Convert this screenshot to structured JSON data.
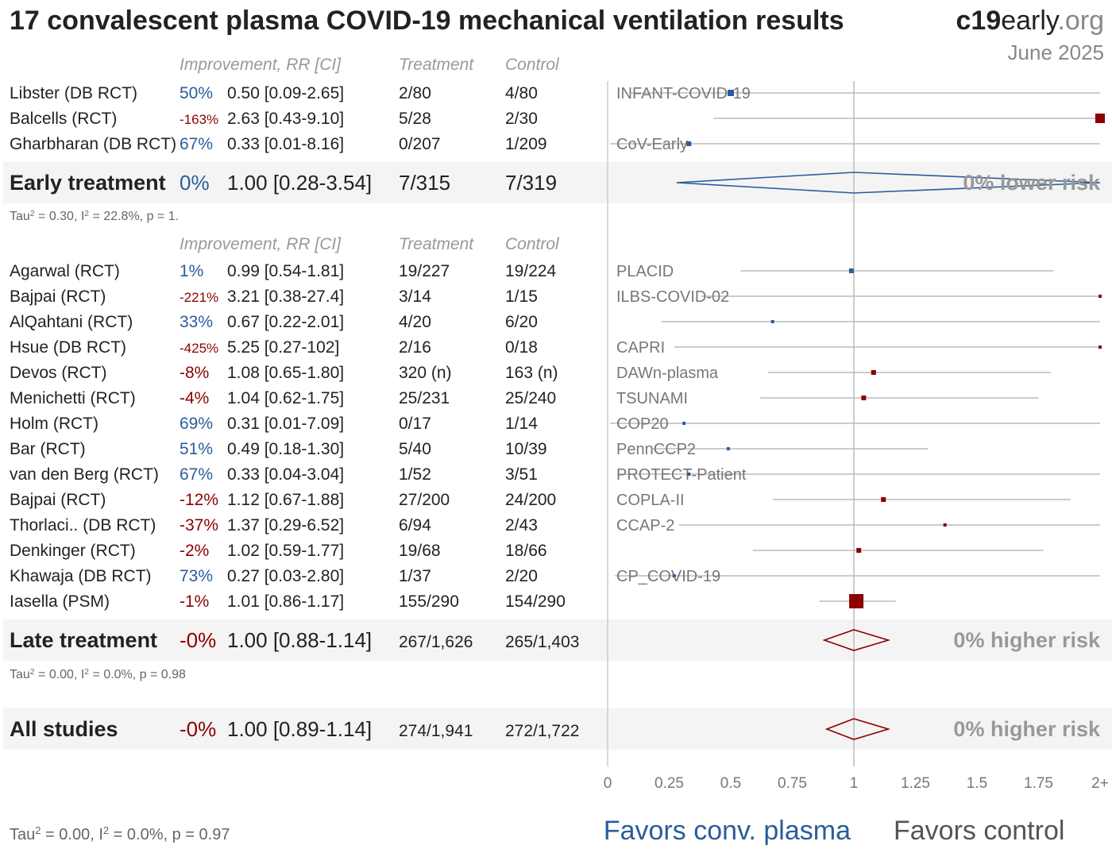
{
  "header": {
    "title": "17 convalescent plasma COVID-19 mechanical ventilation results",
    "brand_bold": "c19",
    "brand_rest": "early",
    "brand_tld": ".org",
    "date": "June 2025"
  },
  "columns": {
    "improvement": "Improvement, RR [CI]",
    "treatment": "Treatment",
    "control": "Control"
  },
  "colors": {
    "favor": "#2a5d9a",
    "harm": "#8b0000",
    "line": "#bbbbbb",
    "band": "#f4f4f4"
  },
  "chart_data": {
    "type": "forest",
    "x_ticks": [
      "0",
      "0.25",
      "0.5",
      "0.75",
      "1",
      "1.25",
      "1.5",
      "1.75",
      "2+"
    ],
    "xlim": [
      0,
      2
    ],
    "favors_left": "Favors conv. plasma",
    "favors_right": "Favors control",
    "groups": [
      {
        "studies": [
          {
            "name": "Libster (DB RCT)",
            "improvement": "50%",
            "rr": 0.5,
            "rr_text": "0.50 [0.09-2.65]",
            "lo": 0.09,
            "hi": 2.65,
            "treatment": "2/80",
            "control": "4/80",
            "trial": "INFANT-COVID-19",
            "weight": 3
          },
          {
            "name": "Balcells (RCT)",
            "improvement": "-163%",
            "rr": 2.63,
            "rr_text": "2.63 [0.43-9.10]",
            "lo": 0.43,
            "hi": 9.1,
            "treatment": "5/28",
            "control": "2/30",
            "trial": "",
            "weight": 4
          },
          {
            "name": "Gharbharan (DB RCT)",
            "improvement": "67%",
            "rr": 0.33,
            "rr_text": "0.33 [0.01-8.16]",
            "lo": 0.01,
            "hi": 8.16,
            "treatment": "0/207",
            "control": "1/209",
            "trial": "CoV-Early",
            "weight": 2
          }
        ],
        "summary": {
          "label": "Early treatment",
          "improvement": "0%",
          "rr": 1.0,
          "rr_text": "1.00 [0.28-3.54]",
          "lo": 0.28,
          "hi": 3.54,
          "treatment": "7/315",
          "control": "7/319",
          "risk": "0% lower risk"
        },
        "stats": {
          "tau2": "0.30",
          "i2": "22.8%",
          "p": "1."
        }
      },
      {
        "studies": [
          {
            "name": "Agarwal (RCT)",
            "improvement": "1%",
            "rr": 0.99,
            "rr_text": "0.99 [0.54-1.81]",
            "lo": 0.54,
            "hi": 1.81,
            "treatment": "19/227",
            "control": "19/224",
            "trial": "PLACID",
            "weight": 2
          },
          {
            "name": "Bajpai (RCT)",
            "improvement": "-221%",
            "rr": 3.21,
            "rr_text": "3.21 [0.38-27.4]",
            "lo": 0.38,
            "hi": 27.4,
            "treatment": "3/14",
            "control": "1/15",
            "trial": "ILBS-COVID-02",
            "weight": 1
          },
          {
            "name": "AlQahtani (RCT)",
            "improvement": "33%",
            "rr": 0.67,
            "rr_text": "0.67 [0.22-2.01]",
            "lo": 0.22,
            "hi": 2.01,
            "treatment": "4/20",
            "control": "6/20",
            "trial": "",
            "weight": 1
          },
          {
            "name": "Hsue (DB RCT)",
            "improvement": "-425%",
            "rr": 5.25,
            "rr_text": "5.25 [0.27-102]",
            "lo": 0.27,
            "hi": 102,
            "treatment": "2/16",
            "control": "0/18",
            "trial": "CAPRI",
            "weight": 1
          },
          {
            "name": "Devos (RCT)",
            "improvement": "-8%",
            "rr": 1.08,
            "rr_text": "1.08 [0.65-1.80]",
            "lo": 0.65,
            "hi": 1.8,
            "treatment": "320 (n)",
            "control": "163 (n)",
            "trial": "DAWn-plasma",
            "weight": 2
          },
          {
            "name": "Menichetti (RCT)",
            "improvement": "-4%",
            "rr": 1.04,
            "rr_text": "1.04 [0.62-1.75]",
            "lo": 0.62,
            "hi": 1.75,
            "treatment": "25/231",
            "control": "25/240",
            "trial": "TSUNAMI",
            "weight": 2
          },
          {
            "name": "Holm (RCT)",
            "improvement": "69%",
            "rr": 0.31,
            "rr_text": "0.31 [0.01-7.09]",
            "lo": 0.01,
            "hi": 7.09,
            "treatment": "0/17",
            "control": "1/14",
            "trial": "COP20",
            "weight": 1
          },
          {
            "name": "Bar (RCT)",
            "improvement": "51%",
            "rr": 0.49,
            "rr_text": "0.49 [0.18-1.30]",
            "lo": 0.18,
            "hi": 1.3,
            "treatment": "5/40",
            "control": "10/39",
            "trial": "PennCCP2",
            "weight": 1
          },
          {
            "name": "van den Berg (RCT)",
            "improvement": "67%",
            "rr": 0.33,
            "rr_text": "0.33 [0.04-3.04]",
            "lo": 0.04,
            "hi": 3.04,
            "treatment": "1/52",
            "control": "3/51",
            "trial": "PROTECT-Patient",
            "weight": 1
          },
          {
            "name": "Bajpai (RCT)",
            "improvement": "-12%",
            "rr": 1.12,
            "rr_text": "1.12 [0.67-1.88]",
            "lo": 0.67,
            "hi": 1.88,
            "treatment": "27/200",
            "control": "24/200",
            "trial": "COPLA-II",
            "weight": 2
          },
          {
            "name": "Thorlaci.. (DB RCT)",
            "improvement": "-37%",
            "rr": 1.37,
            "rr_text": "1.37 [0.29-6.52]",
            "lo": 0.29,
            "hi": 6.52,
            "treatment": "6/94",
            "control": "2/43",
            "trial": "CCAP-2",
            "weight": 1
          },
          {
            "name": "Denkinger (RCT)",
            "improvement": "-2%",
            "rr": 1.02,
            "rr_text": "1.02 [0.59-1.77]",
            "lo": 0.59,
            "hi": 1.77,
            "treatment": "19/68",
            "control": "18/66",
            "trial": "",
            "weight": 2
          },
          {
            "name": "Khawaja (DB RCT)",
            "improvement": "73%",
            "rr": 0.27,
            "rr_text": "0.27 [0.03-2.80]",
            "lo": 0.03,
            "hi": 2.8,
            "treatment": "1/37",
            "control": "2/20",
            "trial": "CP_COVID-19",
            "weight": 1
          },
          {
            "name": "Iasella (PSM)",
            "improvement": "-1%",
            "rr": 1.01,
            "rr_text": "1.01 [0.86-1.17]",
            "lo": 0.86,
            "hi": 1.17,
            "treatment": "155/290",
            "control": "154/290",
            "trial": "",
            "weight": 5
          }
        ],
        "summary": {
          "label": "Late treatment",
          "improvement": "-0%",
          "rr": 1.0,
          "rr_text": "1.00 [0.88-1.14]",
          "lo": 0.88,
          "hi": 1.14,
          "treatment": "267/1,626",
          "control": "265/1,403",
          "risk": "0% higher risk"
        },
        "stats": {
          "tau2": "0.00",
          "i2": "0.0%",
          "p": "0.98"
        }
      }
    ],
    "overall": {
      "label": "All studies",
      "improvement": "-0%",
      "rr": 1.0,
      "rr_text": "1.00 [0.89-1.14]",
      "lo": 0.89,
      "hi": 1.14,
      "treatment": "274/1,941",
      "control": "272/1,722",
      "risk": "0% higher risk"
    },
    "overall_stats": {
      "tau2": "0.00",
      "i2": "0.0%",
      "p": "0.97"
    }
  }
}
